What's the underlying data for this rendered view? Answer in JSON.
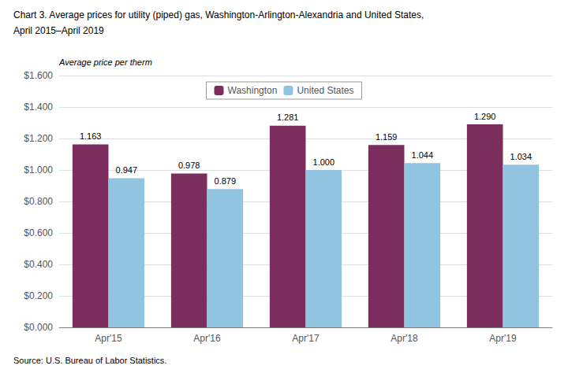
{
  "chart_data": {
    "type": "bar",
    "title": "Chart 3. Average prices for utility (piped) gas, Washington-Arlington-Alexandria and United States,",
    "subtitle": "April 2015–April 2019",
    "ylabel": "Average price per therm",
    "annotations": [
      "Source: U.S. Bureau of Labor Statistics."
    ],
    "categories": [
      "Apr'15",
      "Apr'16",
      "Apr'17",
      "Apr'18",
      "Apr'19"
    ],
    "series": [
      {
        "name": "Washington",
        "color": "#7B2D5E",
        "values": [
          1.163,
          0.978,
          1.281,
          1.159,
          1.29
        ],
        "value_labels": [
          "1.163",
          "0.978",
          "1.281",
          "1.159",
          "1.290"
        ]
      },
      {
        "name": "United States",
        "color": "#91C4E0",
        "values": [
          0.947,
          0.879,
          1.0,
          1.044,
          1.034
        ],
        "value_labels": [
          "0.947",
          "0.879",
          "1.000",
          "1.044",
          "1.034"
        ]
      }
    ],
    "ylim": [
      0,
      1.6
    ],
    "yticks": [
      {
        "value": 0.0,
        "label": "$0.000"
      },
      {
        "value": 0.2,
        "label": "$0.200"
      },
      {
        "value": 0.4,
        "label": "$0.400"
      },
      {
        "value": 0.6,
        "label": "$0.600"
      },
      {
        "value": 0.8,
        "label": "$0.800"
      },
      {
        "value": 1.0,
        "label": "$1.000"
      },
      {
        "value": 1.2,
        "label": "$1.200"
      },
      {
        "value": 1.4,
        "label": "$1.400"
      },
      {
        "value": 1.6,
        "label": "$1.600"
      }
    ],
    "grid": true,
    "legend": "upper center",
    "data_labels": true
  }
}
